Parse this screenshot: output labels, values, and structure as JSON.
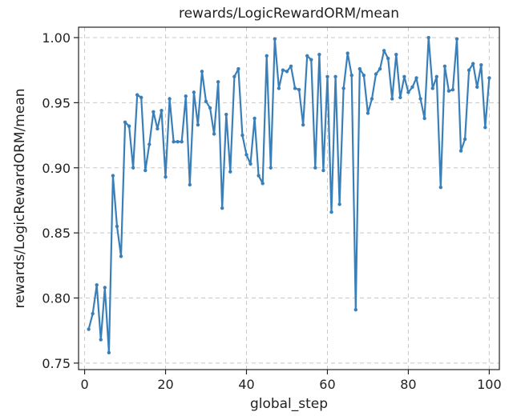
{
  "chart_data": {
    "type": "line",
    "title": "rewards/LogicRewardORM/mean",
    "xlabel": "global_step",
    "ylabel": "rewards/LogicRewardORM/mean",
    "xlim": [
      -1.5,
      102.5
    ],
    "ylim": [
      0.745,
      1.008
    ],
    "x_ticks": [
      0,
      20,
      40,
      60,
      80,
      100
    ],
    "y_ticks": [
      0.75,
      0.8,
      0.85,
      0.9,
      0.95,
      1.0
    ],
    "x_tick_labels": [
      "0",
      "20",
      "40",
      "60",
      "80",
      "100"
    ],
    "y_tick_labels": [
      "0.75",
      "0.80",
      "0.85",
      "0.90",
      "0.95",
      "1.00"
    ],
    "grid": true,
    "grid_style": "dashed",
    "series": [
      {
        "color": "#3a7fb8",
        "x": [
          1,
          2,
          3,
          4,
          5,
          6,
          7,
          8,
          9,
          10,
          11,
          12,
          13,
          14,
          15,
          16,
          17,
          18,
          19,
          20,
          21,
          22,
          23,
          24,
          25,
          26,
          27,
          28,
          29,
          30,
          31,
          32,
          33,
          34,
          35,
          36,
          37,
          38,
          39,
          40,
          41,
          42,
          43,
          44,
          45,
          46,
          47,
          48,
          49,
          50,
          51,
          52,
          53,
          54,
          55,
          56,
          57,
          58,
          59,
          60,
          61,
          62,
          63,
          64,
          65,
          66,
          67,
          68,
          69,
          70,
          71,
          72,
          73,
          74,
          75,
          76,
          77,
          78,
          79,
          80,
          81,
          82,
          83,
          84,
          85,
          86,
          87,
          88,
          89,
          90,
          91,
          92,
          93,
          94,
          95,
          96,
          97,
          98,
          99,
          100
        ],
        "values": [
          0.776,
          0.788,
          0.81,
          0.768,
          0.808,
          0.758,
          0.894,
          0.855,
          0.832,
          0.935,
          0.932,
          0.9,
          0.956,
          0.954,
          0.898,
          0.918,
          0.943,
          0.93,
          0.944,
          0.893,
          0.953,
          0.92,
          0.92,
          0.92,
          0.955,
          0.887,
          0.958,
          0.933,
          0.974,
          0.951,
          0.946,
          0.926,
          0.966,
          0.869,
          0.941,
          0.897,
          0.97,
          0.976,
          0.925,
          0.91,
          0.903,
          0.938,
          0.894,
          0.888,
          0.986,
          0.9,
          0.999,
          0.961,
          0.975,
          0.974,
          0.978,
          0.961,
          0.96,
          0.933,
          0.986,
          0.983,
          0.9,
          0.987,
          0.898,
          0.97,
          0.866,
          0.97,
          0.872,
          0.961,
          0.988,
          0.971,
          0.791,
          0.976,
          0.971,
          0.942,
          0.953,
          0.972,
          0.976,
          0.99,
          0.984,
          0.953,
          0.987,
          0.954,
          0.97,
          0.958,
          0.962,
          0.969,
          0.953,
          0.938,
          1.0,
          0.961,
          0.97,
          0.885,
          0.978,
          0.959,
          0.96,
          0.999,
          0.913,
          0.922,
          0.975,
          0.98,
          0.962,
          0.979,
          0.931,
          0.969
        ]
      }
    ]
  }
}
